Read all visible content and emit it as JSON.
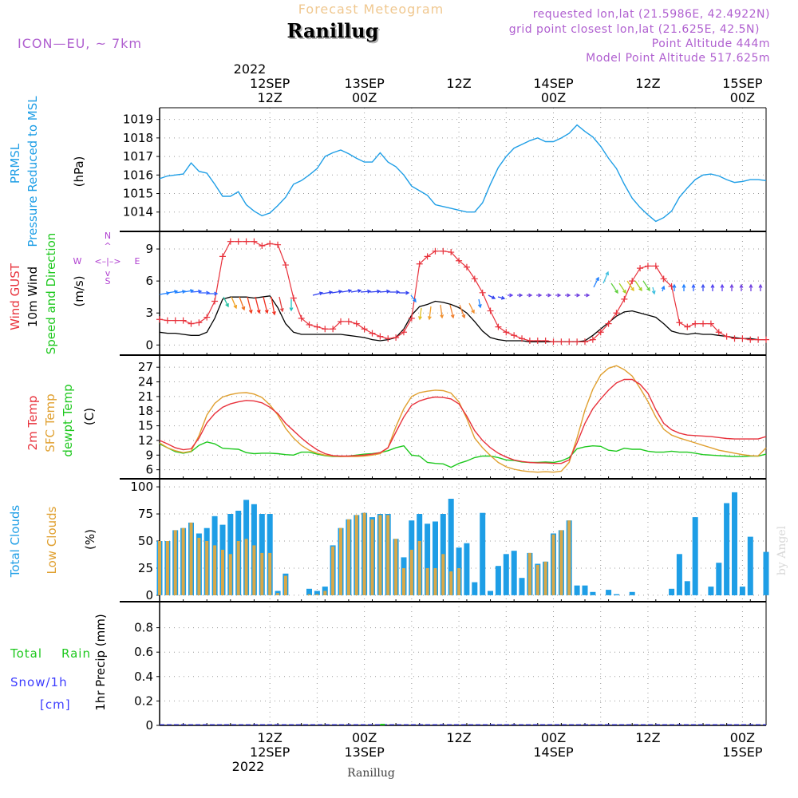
{
  "header": {
    "product": "Forecast Meteogram",
    "station": "Ranillug",
    "model": "ICON—EU, ~ 7km",
    "requested": "requested lon,lat (21.5986E, 42.4922N)",
    "gridpoint": "grid point closest lon,lat (21.625E, 42.5N)",
    "point_alt": "Point Altitude 444m",
    "model_alt": "Model Point Altitude 517.625m",
    "footer_station": "Ranillug",
    "watermark": "by Angel"
  },
  "time_axis": {
    "top_year": "2022",
    "bottom_year": "2022",
    "ticks": [
      {
        "hour": 14,
        "top": [
          "12SEP",
          "12Z"
        ],
        "bottom": [
          "12Z",
          "12SEP"
        ]
      },
      {
        "hour": 26,
        "top": [
          "13SEP",
          "00Z"
        ],
        "bottom": [
          "00Z",
          "13SEP"
        ]
      },
      {
        "hour": 38,
        "top": [
          "12Z"
        ],
        "bottom": [
          "12Z"
        ]
      },
      {
        "hour": 50,
        "top": [
          "14SEP",
          "00Z"
        ],
        "bottom": [
          "00Z",
          "14SEP"
        ]
      },
      {
        "hour": 62,
        "top": [
          "12Z"
        ],
        "bottom": [
          "12Z"
        ]
      },
      {
        "hour": 74,
        "top": [
          "15SEP",
          "00Z"
        ],
        "bottom": [
          "00Z",
          "15SEP"
        ]
      }
    ]
  },
  "panels": {
    "pressure": {
      "labels": [
        "PRMSL",
        "Pressure Reduced to MSL"
      ],
      "unit": "(hPa)"
    },
    "wind": {
      "labels": [
        "Wind GUST",
        "10m Wind",
        "Speed and Direction"
      ],
      "unit": "(m/s)",
      "compass": {
        "n": "N",
        "s": "S",
        "w": "W",
        "e": "E"
      }
    },
    "temp": {
      "labels": [
        "2m Temp",
        "SFC Temp",
        "dewpt Temp"
      ],
      "unit": "(C)"
    },
    "clouds": {
      "labels": [
        "Total Clouds",
        "Low Clouds"
      ],
      "unit": "(%)"
    },
    "precip": {
      "labels": [
        "Total",
        "Rain",
        "Snow/1h",
        "[cm]"
      ],
      "axis": "1hr Precip (mm)"
    }
  },
  "colors": {
    "pressure": "#1e9ee6",
    "gust": "#e8323c",
    "wind": "#000000",
    "temp2m": "#e8323c",
    "sfc": "#e0a030",
    "dewpt": "#1ec81e",
    "total_clouds": "#1e9ee6",
    "low_clouds": "#d8a848",
    "header_sub": "#b060d0",
    "product": "#f0c890",
    "rain": "#1ec81e",
    "snow": "#3c3cff",
    "compass": "#b040d0"
  },
  "chart_data": [
    {
      "type": "line",
      "title": "PRMSL",
      "ylabel": "(hPa)",
      "ylim": [
        1013.3,
        1019.2
      ],
      "yticks": [
        1014,
        1015,
        1016,
        1017,
        1018,
        1019
      ],
      "x_hours": [
        0,
        1,
        2,
        3,
        4,
        5,
        6,
        7,
        8,
        9,
        10,
        11,
        12,
        13,
        14,
        15,
        16,
        17,
        18,
        19,
        20,
        21,
        22,
        23,
        24,
        25,
        26,
        27,
        28,
        29,
        30,
        31,
        32,
        33,
        34,
        35,
        36,
        37,
        38,
        39,
        40,
        41,
        42,
        43,
        44,
        45,
        46,
        47,
        48,
        49,
        50,
        51,
        52,
        53,
        54,
        55,
        56,
        57,
        58,
        59,
        60,
        61,
        62,
        63,
        64,
        65,
        66,
        67,
        68,
        69,
        70,
        71,
        72,
        73,
        74,
        75,
        76,
        77
      ],
      "series": [
        {
          "name": "PRMSL",
          "values": [
            1015.8,
            1015.95,
            1016.0,
            1016.05,
            1016.65,
            1016.2,
            1016.1,
            1015.5,
            1014.85,
            1014.85,
            1015.1,
            1014.4,
            1014.05,
            1013.8,
            1013.95,
            1014.35,
            1014.8,
            1015.5,
            1015.7,
            1016.0,
            1016.35,
            1017.0,
            1017.2,
            1017.35,
            1017.15,
            1016.9,
            1016.7,
            1016.7,
            1017.2,
            1016.7,
            1016.45,
            1016.0,
            1015.4,
            1015.15,
            1014.9,
            1014.4,
            1014.3,
            1014.2,
            1014.1,
            1014.0,
            1014.0,
            1014.5,
            1015.5,
            1016.4,
            1017.0,
            1017.45,
            1017.65,
            1017.85,
            1018.0,
            1017.8,
            1017.8,
            1018.0,
            1018.25,
            1018.7,
            1018.35,
            1018.05,
            1017.55,
            1016.9,
            1016.35,
            1015.5,
            1014.75,
            1014.25,
            1013.85,
            1013.5,
            1013.7,
            1014.05,
            1014.8,
            1015.3,
            1015.75,
            1016.0,
            1016.05,
            1015.95,
            1015.75,
            1015.6,
            1015.65,
            1015.75,
            1015.75,
            1015.7
          ]
        }
      ]
    },
    {
      "type": "line",
      "title": "Wind",
      "ylabel": "(m/s)",
      "ylim": [
        -0.5,
        10.2
      ],
      "yticks": [
        0,
        3,
        6,
        9
      ],
      "x_hours": [
        0,
        1,
        2,
        3,
        4,
        5,
        6,
        7,
        8,
        9,
        10,
        11,
        12,
        13,
        14,
        15,
        16,
        17,
        18,
        19,
        20,
        21,
        22,
        23,
        24,
        25,
        26,
        27,
        28,
        29,
        30,
        31,
        32,
        33,
        34,
        35,
        36,
        37,
        38,
        39,
        40,
        41,
        42,
        43,
        44,
        45,
        46,
        47,
        48,
        49,
        50,
        51,
        52,
        53,
        54,
        55,
        56,
        57,
        58,
        59,
        60,
        61,
        62,
        63,
        64,
        65,
        66,
        67,
        68,
        69,
        70,
        71,
        72,
        73,
        74,
        75,
        76,
        77
      ],
      "series": [
        {
          "name": "Wind GUST",
          "values": [
            2.4,
            2.3,
            2.3,
            2.3,
            2.0,
            2.1,
            2.6,
            4.1,
            8.3,
            9.7,
            9.7,
            9.7,
            9.7,
            9.3,
            9.5,
            9.4,
            7.5,
            4.4,
            2.5,
            1.9,
            1.7,
            1.5,
            1.5,
            2.2,
            2.2,
            2.0,
            1.5,
            1.1,
            0.8,
            0.6,
            0.7,
            1.2,
            2.5,
            7.6,
            8.3,
            8.8,
            8.8,
            8.7,
            7.9,
            7.3,
            6.2,
            4.9,
            3.2,
            1.7,
            1.2,
            0.9,
            0.6,
            0.4,
            0.4,
            0.4,
            0.3,
            0.3,
            0.3,
            0.3,
            0.3,
            0.5,
            1.2,
            2.0,
            3.0,
            4.3,
            6.0,
            7.2,
            7.4,
            7.4,
            6.2,
            5.5,
            2.1,
            1.7,
            2.0,
            2.0,
            2.0,
            1.2,
            0.8,
            0.6,
            0.6,
            0.5,
            0.5,
            0.5
          ]
        },
        {
          "name": "10m Wind",
          "values": [
            1.2,
            1.1,
            1.1,
            1.0,
            0.9,
            0.9,
            1.2,
            2.5,
            4.3,
            4.5,
            4.5,
            4.5,
            4.4,
            4.5,
            4.6,
            3.5,
            2.0,
            1.2,
            1.0,
            1.0,
            1.0,
            1.0,
            1.0,
            1.0,
            0.9,
            0.8,
            0.7,
            0.5,
            0.4,
            0.5,
            0.7,
            1.5,
            2.8,
            3.6,
            3.8,
            4.1,
            4.0,
            3.8,
            3.5,
            3.0,
            2.2,
            1.3,
            0.7,
            0.5,
            0.4,
            0.4,
            0.4,
            0.3,
            0.3,
            0.3,
            0.3,
            0.3,
            0.3,
            0.3,
            0.4,
            0.9,
            1.5,
            2.1,
            2.7,
            3.1,
            3.2,
            3.0,
            2.8,
            2.6,
            2.0,
            1.3,
            1.1,
            1.0,
            1.1,
            1.0,
            1.0,
            0.9,
            0.8,
            0.7,
            0.6,
            0.6,
            0.5,
            0.5
          ]
        }
      ]
    },
    {
      "type": "line",
      "title": "Temperature",
      "ylabel": "(C)",
      "ylim": [
        4.8,
        28.5
      ],
      "yticks": [
        6,
        9,
        12,
        15,
        18,
        21,
        24,
        27
      ],
      "x_hours": [
        0,
        1,
        2,
        3,
        4,
        5,
        6,
        7,
        8,
        9,
        10,
        11,
        12,
        13,
        14,
        15,
        16,
        17,
        18,
        19,
        20,
        21,
        22,
        23,
        24,
        25,
        26,
        27,
        28,
        29,
        30,
        31,
        32,
        33,
        34,
        35,
        36,
        37,
        38,
        39,
        40,
        41,
        42,
        43,
        44,
        45,
        46,
        47,
        48,
        49,
        50,
        51,
        52,
        53,
        54,
        55,
        56,
        57,
        58,
        59,
        60,
        61,
        62,
        63,
        64,
        65,
        66,
        67,
        68,
        69,
        70,
        71,
        72,
        73,
        74,
        75,
        76,
        77
      ],
      "series": [
        {
          "name": "2m Temp",
          "values": [
            12.0,
            11.3,
            10.5,
            10.1,
            10.3,
            12.5,
            15.6,
            17.5,
            18.8,
            19.5,
            19.9,
            20.2,
            20.1,
            19.7,
            18.8,
            17.5,
            15.5,
            14.0,
            12.5,
            11.2,
            10.1,
            9.3,
            8.9,
            8.8,
            8.8,
            8.9,
            9.0,
            9.2,
            9.5,
            10.5,
            13.7,
            16.8,
            19.2,
            20.1,
            20.6,
            20.9,
            20.8,
            20.5,
            19.5,
            17.0,
            14.0,
            12.0,
            10.5,
            9.4,
            8.6,
            8.0,
            7.7,
            7.5,
            7.4,
            7.4,
            7.3,
            7.3,
            8.0,
            11.5,
            15.5,
            18.5,
            20.5,
            22.3,
            23.8,
            24.5,
            24.5,
            23.5,
            21.7,
            18.3,
            15.5,
            14.2,
            13.5,
            13.1,
            13.0,
            12.9,
            12.8,
            12.6,
            12.4,
            12.3,
            12.3,
            12.3,
            12.3,
            12.8
          ]
        },
        {
          "name": "SFC Temp",
          "values": [
            11.5,
            10.5,
            9.9,
            9.5,
            9.8,
            13.0,
            17.2,
            19.6,
            20.9,
            21.4,
            21.7,
            21.8,
            21.5,
            20.8,
            19.3,
            17.2,
            14.5,
            12.5,
            11.0,
            10.0,
            9.4,
            9.0,
            8.8,
            8.7,
            8.7,
            8.7,
            8.8,
            9.0,
            9.3,
            10.5,
            14.8,
            18.5,
            21.0,
            21.8,
            22.1,
            22.3,
            22.2,
            21.7,
            19.9,
            16.5,
            12.5,
            10.5,
            8.9,
            7.5,
            6.6,
            6.1,
            5.8,
            5.6,
            5.5,
            5.6,
            5.5,
            5.7,
            7.5,
            12.5,
            18.2,
            22.5,
            25.4,
            26.8,
            27.3,
            26.5,
            25.2,
            22.7,
            20.0,
            16.8,
            14.3,
            13.1,
            12.5,
            12.0,
            11.5,
            11.0,
            10.5,
            10.0,
            9.7,
            9.4,
            9.1,
            8.9,
            8.8,
            10.5
          ]
        },
        {
          "name": "dewpt Temp",
          "values": [
            11.3,
            10.5,
            9.7,
            9.4,
            9.7,
            11.0,
            11.7,
            11.3,
            10.4,
            10.3,
            10.2,
            9.5,
            9.3,
            9.4,
            9.4,
            9.3,
            9.1,
            9.0,
            9.6,
            9.6,
            9.2,
            8.9,
            8.7,
            8.7,
            8.8,
            9.0,
            9.2,
            9.3,
            9.5,
            9.9,
            10.5,
            10.9,
            9.0,
            8.8,
            7.5,
            7.3,
            7.2,
            6.5,
            7.3,
            7.8,
            8.5,
            8.8,
            8.8,
            8.5,
            8.0,
            7.9,
            7.6,
            7.5,
            7.5,
            7.6,
            7.5,
            7.8,
            8.5,
            10.3,
            10.7,
            10.9,
            10.8,
            10.0,
            9.8,
            10.4,
            10.2,
            10.2,
            9.8,
            9.6,
            9.6,
            9.8,
            9.6,
            9.6,
            9.4,
            9.1,
            9.0,
            8.9,
            8.8,
            8.7,
            8.7,
            8.8,
            8.8,
            9.2
          ]
        }
      ]
    },
    {
      "type": "bar",
      "title": "Clouds",
      "ylabel": "(%)",
      "ylim": [
        -3,
        103
      ],
      "yticks": [
        0,
        25,
        50,
        75,
        100
      ],
      "x_hours": [
        0,
        1,
        2,
        3,
        4,
        5,
        6,
        7,
        8,
        9,
        10,
        11,
        12,
        13,
        14,
        15,
        16,
        17,
        18,
        19,
        20,
        21,
        22,
        23,
        24,
        25,
        26,
        27,
        28,
        29,
        30,
        31,
        32,
        33,
        34,
        35,
        36,
        37,
        38,
        39,
        40,
        41,
        42,
        43,
        44,
        45,
        46,
        47,
        48,
        49,
        50,
        51,
        52,
        53,
        54,
        55,
        56,
        57,
        58,
        59,
        60,
        61,
        62,
        63,
        64,
        65,
        66,
        67,
        68,
        69,
        70,
        71,
        72,
        73,
        74,
        75,
        76,
        77
      ],
      "series": [
        {
          "name": "Total Clouds",
          "values": [
            50,
            50,
            60,
            62,
            67,
            57,
            62,
            73,
            65,
            75,
            78,
            88,
            84,
            75,
            75,
            4,
            20,
            0,
            0,
            6,
            4,
            8,
            46,
            62,
            70,
            74,
            76,
            72,
            75,
            75,
            52,
            35,
            69,
            75,
            66,
            68,
            75,
            89,
            44,
            48,
            12,
            76,
            4,
            27,
            38,
            41,
            16,
            39,
            29,
            31,
            57,
            60,
            69,
            9,
            9,
            3,
            0,
            5,
            1,
            0,
            3,
            0,
            0,
            0,
            0,
            6,
            38,
            13,
            72,
            0,
            8,
            30,
            85,
            95,
            8,
            54,
            0,
            40
          ]
        },
        {
          "name": "Low Clouds",
          "values": [
            50,
            50,
            60,
            62,
            67,
            53,
            50,
            46,
            42,
            38,
            50,
            52,
            46,
            39,
            39,
            2,
            18,
            0,
            0,
            1,
            1,
            4,
            45,
            62,
            70,
            74,
            76,
            70,
            74,
            74,
            52,
            25,
            42,
            50,
            25,
            25,
            38,
            22,
            25,
            0,
            0,
            0,
            0,
            0,
            0,
            0,
            0,
            39,
            28,
            31,
            56,
            60,
            69,
            0,
            0,
            0,
            0,
            0,
            0,
            0,
            0,
            0,
            0,
            0,
            0,
            0,
            0,
            0,
            0,
            0,
            0,
            0,
            0,
            0,
            0,
            0,
            0,
            0
          ]
        }
      ]
    },
    {
      "type": "line",
      "title": "1hr Precip",
      "ylabel": "1hr Precip (mm)",
      "ylim": [
        0,
        1.0
      ],
      "yticks": [
        0,
        0.2,
        0.4,
        0.6,
        0.8
      ],
      "series": [
        {
          "name": "Total",
          "values": [
            0
          ]
        },
        {
          "name": "Rain",
          "values": [
            0
          ]
        },
        {
          "name": "Snow/1h",
          "values": [
            0
          ]
        }
      ]
    }
  ]
}
